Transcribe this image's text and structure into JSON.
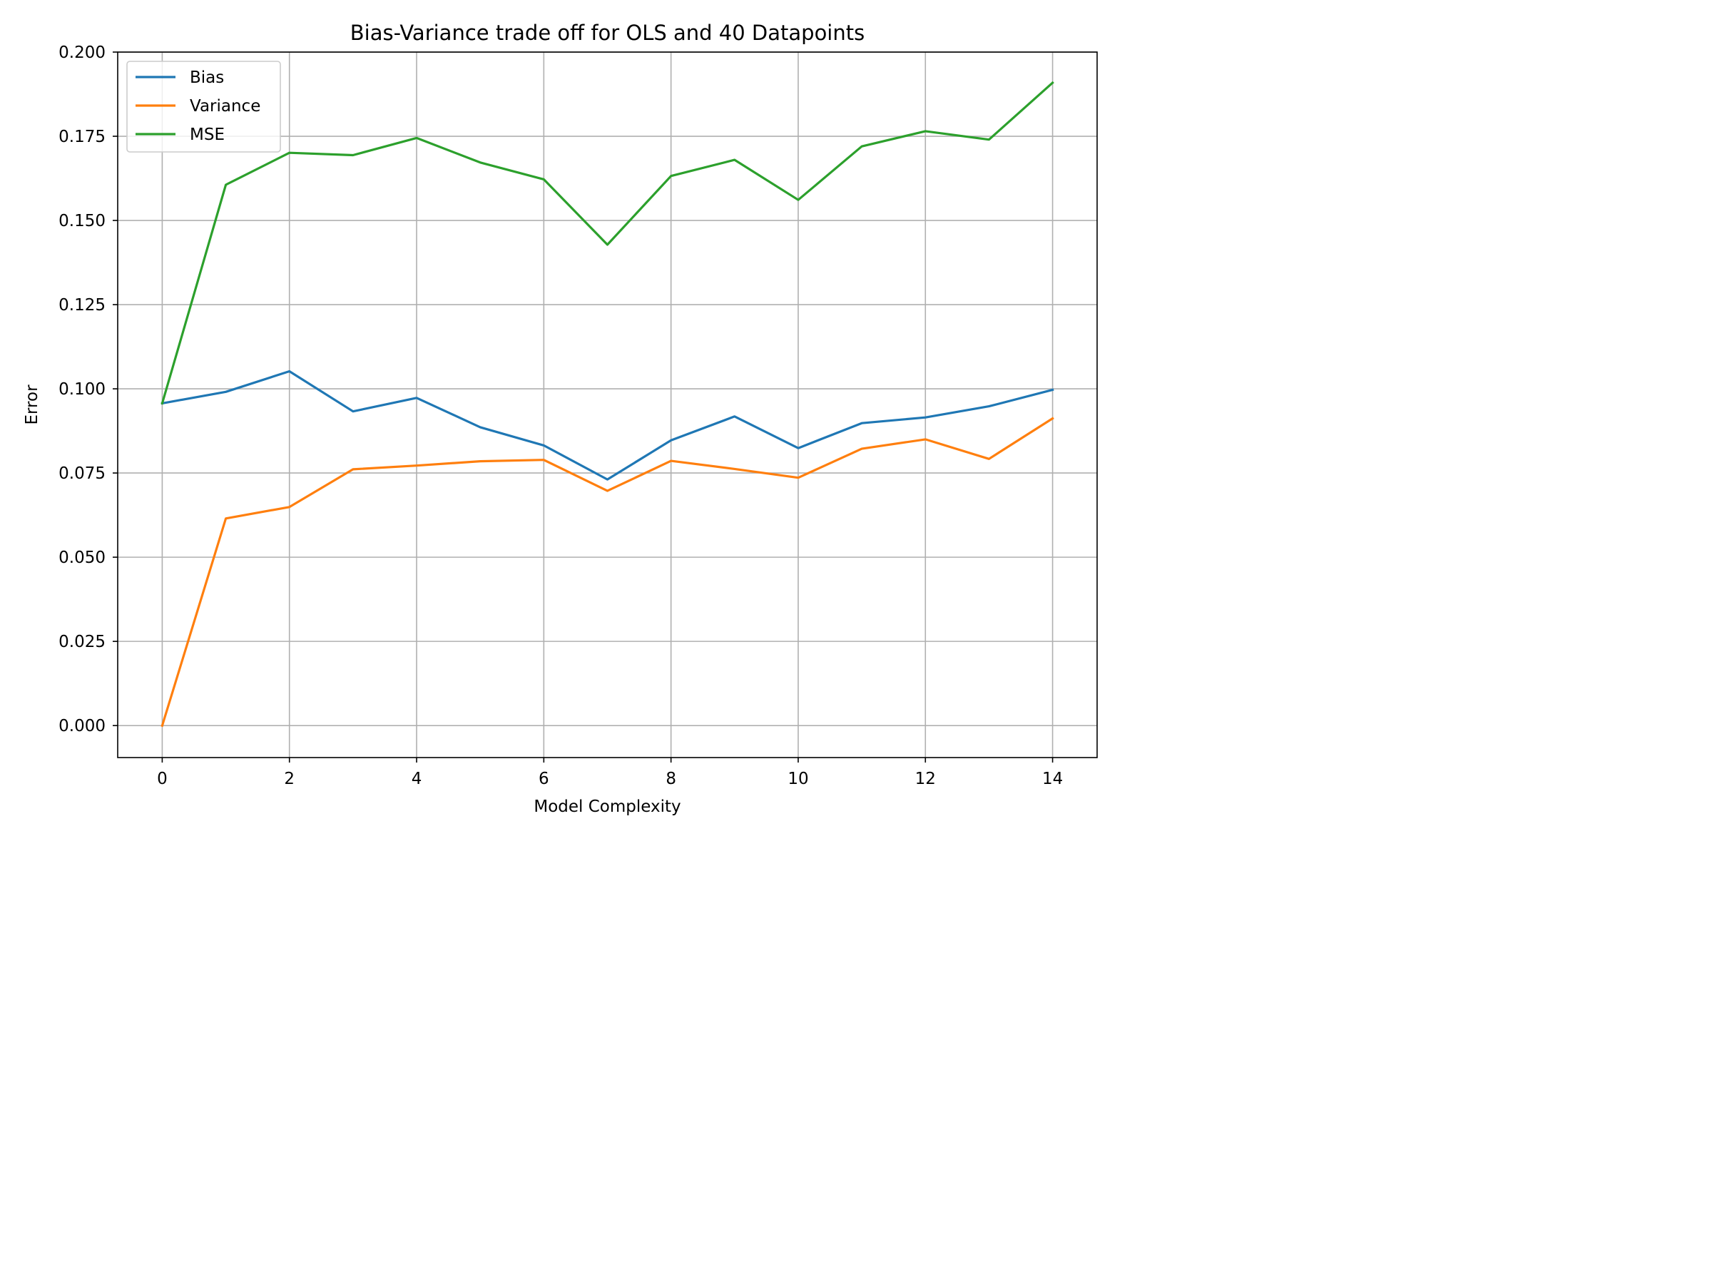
{
  "chart_data": {
    "type": "line",
    "title": "Bias-Variance trade off for OLS and 40 Datapoints",
    "xlabel": "Model Complexity",
    "ylabel": "Error",
    "xlim": [
      -0.7,
      14.7
    ],
    "ylim": [
      -0.0095,
      0.2
    ],
    "xticks": [
      0,
      2,
      4,
      6,
      8,
      10,
      12,
      14
    ],
    "xtick_labels": [
      "0",
      "2",
      "4",
      "6",
      "8",
      "10",
      "12",
      "14"
    ],
    "yticks": [
      0.0,
      0.025,
      0.05,
      0.075,
      0.1,
      0.125,
      0.15,
      0.175,
      0.2
    ],
    "ytick_labels": [
      "0.000",
      "0.025",
      "0.050",
      "0.075",
      "0.100",
      "0.125",
      "0.150",
      "0.175",
      "0.200"
    ],
    "grid": true,
    "legend_position": "top-left",
    "x": [
      0,
      1,
      2,
      3,
      4,
      5,
      6,
      7,
      8,
      9,
      10,
      11,
      12,
      13,
      14
    ],
    "series": [
      {
        "name": "Bias",
        "color": "#1f77b4",
        "values": [
          0.0957,
          0.0991,
          0.1052,
          0.0933,
          0.0973,
          0.0886,
          0.0832,
          0.0731,
          0.0847,
          0.0918,
          0.0824,
          0.0898,
          0.0915,
          0.0948,
          0.0997
        ]
      },
      {
        "name": "Variance",
        "color": "#ff7f0e",
        "values": [
          0.0,
          0.0615,
          0.0649,
          0.0761,
          0.0772,
          0.0785,
          0.0789,
          0.0697,
          0.0786,
          0.0762,
          0.0736,
          0.0822,
          0.085,
          0.0792,
          0.0912
        ]
      },
      {
        "name": "MSE",
        "color": "#2ca02c",
        "values": [
          0.0957,
          0.1606,
          0.1701,
          0.1694,
          0.1745,
          0.1672,
          0.1622,
          0.1428,
          0.1632,
          0.168,
          0.1561,
          0.172,
          0.1765,
          0.174,
          0.1909
        ]
      }
    ]
  }
}
